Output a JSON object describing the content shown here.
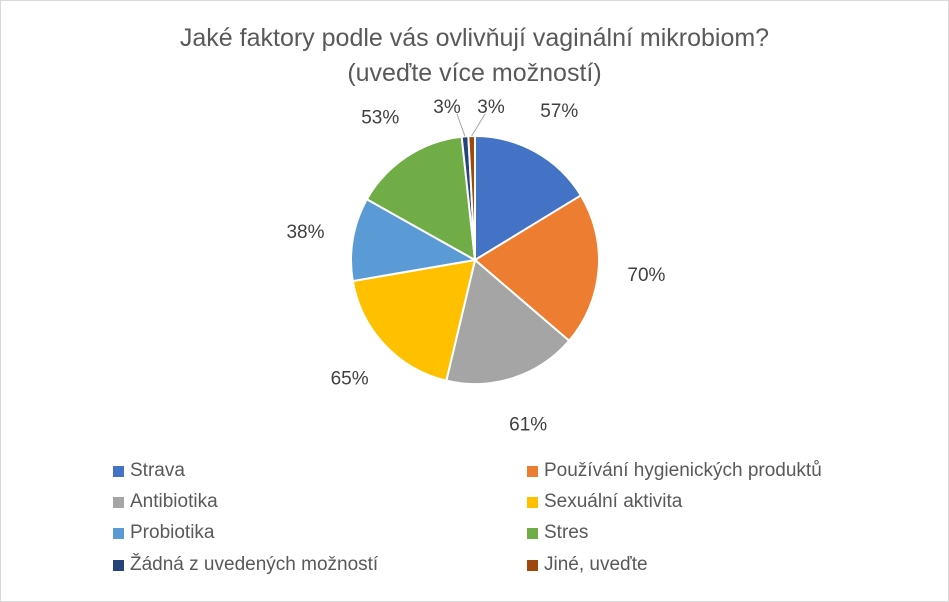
{
  "chart_data": {
    "type": "pie",
    "title_lines": [
      "Jaké faktory podle vás ovlivňují vaginální mikrobiom?",
      "(uveďte více možností)"
    ],
    "categories": [
      "Strava",
      "Používání hygienických produktů",
      "Antibiotika",
      "Sexuální aktivita",
      "Probiotika",
      "Stres",
      "Žádná z uvedených možností",
      "Jiné, uveďte"
    ],
    "values": [
      57,
      70,
      61,
      65,
      38,
      53,
      3,
      3
    ],
    "data_labels": [
      "57%",
      "70%",
      "61%",
      "65%",
      "38%",
      "53%",
      "3%",
      "3%"
    ],
    "colors": [
      "#4472C4",
      "#ED7D31",
      "#A5A5A5",
      "#FFC000",
      "#5B9BD5",
      "#70AD47",
      "#264478",
      "#9E480E"
    ],
    "legend_position": "bottom"
  }
}
